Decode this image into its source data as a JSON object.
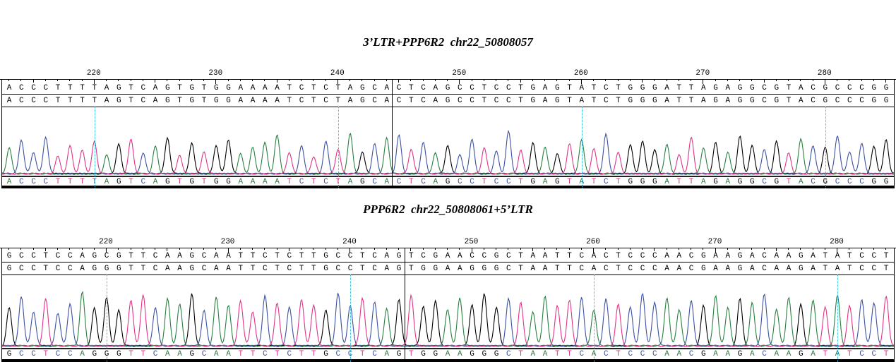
{
  "colors": {
    "A": "#278040",
    "C": "#3b51a3",
    "G": "#000000",
    "T": "#e23387",
    "guide": "#45aec6",
    "text": "#000000"
  },
  "chart_data": [
    {
      "type": "line",
      "chart_kind": "sanger-chromatogram",
      "title": "3’LTR+PPP6R2  chr22_50808057",
      "x_start": 213,
      "x_end": 285,
      "x_ticks": [
        220,
        230,
        240,
        250,
        260,
        270,
        280
      ],
      "guide_positions": [
        220,
        240,
        260,
        280
      ],
      "segment_break_after_base": 32,
      "reference_sequence": "ACCCTTTTAGTCAGTGTGGAAAATCTCTAGCACTCAGCCTCCTGAGTATCTGGGATTAGAGGCGTACGCCCGG",
      "sample_sequence": "ACCCTTTTAGTCAGTGTGGAAAATCTCTAGCACTCAGCCTCCTGAGTATCTGGGATTAGAGGCGTACGCCCGG",
      "basecall_sequence": "ACCCTTTTAGTCAGTGTGGAAAATCTCTAGCACTCAGCCTCCTGAGTATCTGGGATTAGAGGCGTACGCCCGG",
      "trace_series": [
        {
          "base": "A",
          "color_name": "green"
        },
        {
          "base": "C",
          "color_name": "blue"
        },
        {
          "base": "G",
          "color_name": "black"
        },
        {
          "base": "T",
          "color_name": "pink"
        }
      ],
      "peak_heights_rel": [
        0.42,
        0.55,
        0.35,
        0.6,
        0.28,
        0.45,
        0.38,
        0.52,
        0.3,
        0.48,
        0.56,
        0.34,
        0.44,
        0.58,
        0.3,
        0.5,
        0.36,
        0.46,
        0.55,
        0.32,
        0.42,
        0.5,
        0.62,
        0.35,
        0.45,
        0.28,
        0.52,
        0.4,
        0.65,
        0.36,
        0.48,
        0.58,
        0.62,
        0.4,
        0.5,
        0.34,
        0.46,
        0.3,
        0.55,
        0.42,
        0.36,
        0.68,
        0.38,
        0.5,
        0.44,
        0.32,
        0.48,
        0.56,
        0.4,
        0.64,
        0.34,
        0.46,
        0.52,
        0.38,
        0.48,
        0.3,
        0.58,
        0.42,
        0.5,
        0.35,
        0.6,
        0.45,
        0.4,
        0.52,
        0.33,
        0.56,
        0.46,
        0.42,
        0.62,
        0.36,
        0.5,
        0.44,
        0.55
      ]
    },
    {
      "type": "line",
      "chart_kind": "sanger-chromatogram",
      "title": "PPP6R2  chr22_50808061+5’LTR",
      "x_start": 212,
      "x_end": 284,
      "x_ticks": [
        220,
        230,
        240,
        250,
        260,
        270,
        280
      ],
      "guide_positions": [
        220,
        240,
        260,
        280
      ],
      "segment_break_after_base": 33,
      "reference_sequence": "GCCTCCAGCGTTCAAGCAATTCTCTTGCCTCAGTCGAACCGCTAATTCACTCCCAACGAAGACAAGATATCCT",
      "sample_sequence": "GCCTCCAGGGTTCAAGCAATTCTCTTGCCTCAGTGGAAGGGCTAATTCACTCCCAACGAAGACAAGATATCCT",
      "basecall_sequence": "GCCTCCAGGGTTCAAGCAATTCTCTTGCCTCAGTGGAAGGGCTAATTCACTCCCAACGAAGACAAGATATCCT",
      "trace_series": [
        {
          "base": "A",
          "color_name": "green"
        },
        {
          "base": "C",
          "color_name": "blue"
        },
        {
          "base": "G",
          "color_name": "black"
        },
        {
          "base": "T",
          "color_name": "pink"
        }
      ],
      "peak_heights_rel": [
        0.55,
        0.72,
        0.5,
        0.68,
        0.48,
        0.62,
        0.78,
        0.55,
        0.7,
        0.52,
        0.66,
        0.74,
        0.56,
        0.68,
        0.6,
        0.76,
        0.52,
        0.7,
        0.58,
        0.66,
        0.5,
        0.73,
        0.63,
        0.56,
        0.68,
        0.6,
        0.53,
        0.76,
        0.58,
        0.7,
        0.63,
        0.54,
        0.68,
        0.74,
        0.58,
        0.66,
        0.53,
        0.7,
        0.6,
        0.76,
        0.56,
        0.68,
        0.63,
        0.5,
        0.73,
        0.58,
        0.66,
        0.7,
        0.53,
        0.68,
        0.6,
        0.56,
        0.76,
        0.63,
        0.7,
        0.53,
        0.66,
        0.58,
        0.73,
        0.56,
        0.68,
        0.63,
        0.76,
        0.53,
        0.7,
        0.6,
        0.66,
        0.56,
        0.73,
        0.58,
        0.68,
        0.63,
        0.72
      ]
    }
  ]
}
